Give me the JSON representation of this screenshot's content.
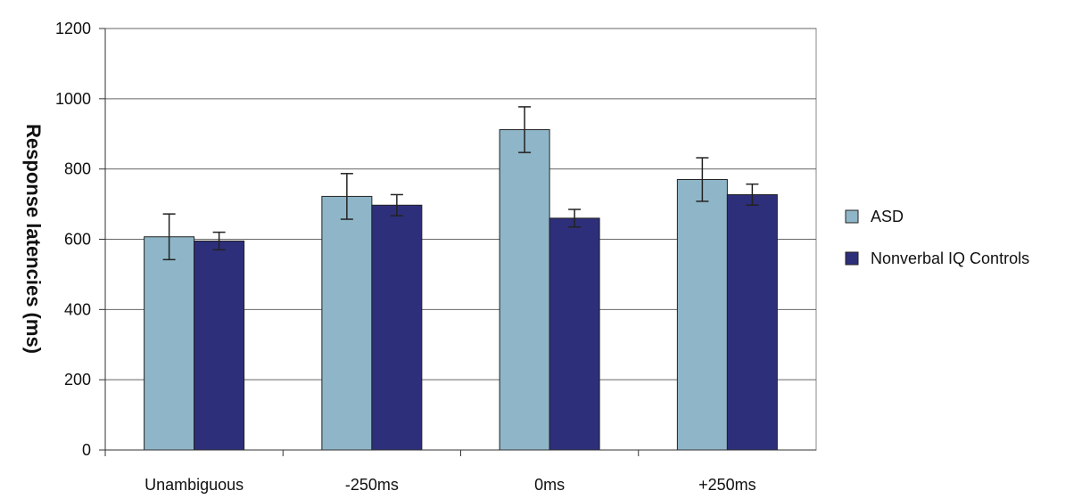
{
  "chart_data": {
    "type": "bar",
    "categories": [
      "Unambiguous",
      "-250ms",
      "0ms",
      "+250ms"
    ],
    "series": [
      {
        "name": "ASD",
        "color": "#8fb6c8",
        "values": [
          607,
          722,
          912,
          770
        ],
        "error": [
          65,
          65,
          65,
          62
        ]
      },
      {
        "name": "Nonverbal IQ Controls",
        "color": "#2e2f7a",
        "values": [
          595,
          697,
          660,
          727
        ],
        "error": [
          25,
          30,
          25,
          30
        ]
      }
    ],
    "xlabel": "",
    "ylabel": "Response latencies (ms)",
    "ylim": [
      0,
      1200
    ],
    "yticks": [
      0,
      200,
      400,
      600,
      800,
      1000,
      1200
    ],
    "grid": true,
    "legend": "right"
  }
}
